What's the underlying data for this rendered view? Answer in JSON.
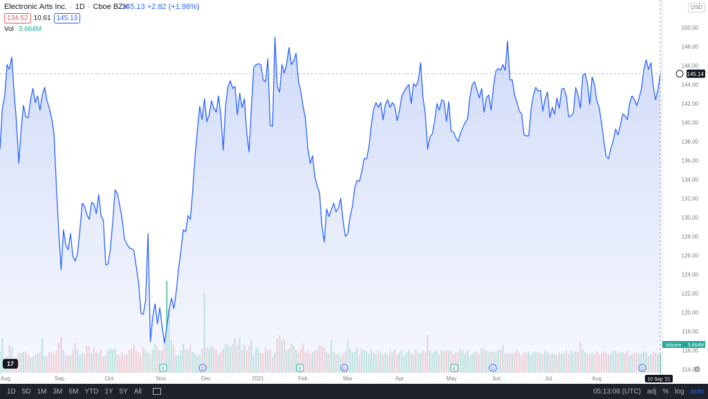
{
  "header": {
    "symbol": "Electronic Arts Inc.",
    "interval": "1D",
    "exchange": "Cboe BZX",
    "last_price": "145.13",
    "change": "+2.82 (+1.98%)",
    "bid": "134.52",
    "spread": "10.61",
    "ask": "145.13",
    "vol_label": "Vol",
    "vol_value": "3.664M",
    "currency": "USD"
  },
  "price_axis": {
    "ticks": [
      "150.00",
      "148.00",
      "146.00",
      "144.00",
      "142.00",
      "140.00",
      "138.00",
      "136.00",
      "134.00",
      "132.00",
      "130.00",
      "128.00",
      "126.00",
      "124.00",
      "122.00",
      "120.00",
      "118.00",
      "116.00",
      "114.00"
    ],
    "current_price_label": "145.14",
    "volume_label_name": "Volume",
    "volume_label_value": "3.664M"
  },
  "time_axis": {
    "labels": [
      "Aug",
      "Sep",
      "Oct",
      "Nov",
      "Dec",
      "2021",
      "Feb",
      "Mar",
      "Apr",
      "May",
      "Jun",
      "Jul",
      "Aug",
      "Se"
    ],
    "crosshair_date": "10 Sep '21"
  },
  "events": [
    {
      "type": "E",
      "label": "E"
    },
    {
      "type": "D",
      "label": "D"
    },
    {
      "type": "E",
      "label": "E"
    },
    {
      "type": "D",
      "label": "D"
    },
    {
      "type": "E",
      "label": "E"
    },
    {
      "type": "D",
      "label": "D"
    },
    {
      "type": "D",
      "label": "D"
    }
  ],
  "bottom_bar": {
    "timeframes": [
      "1D",
      "5D",
      "1M",
      "3M",
      "6M",
      "YTD",
      "1Y",
      "5Y",
      "All"
    ],
    "clock": "05:13:06 (UTC)",
    "adj": "adj",
    "percent": "%",
    "log": "log",
    "auto": "auto"
  },
  "colors": {
    "line": "#2962ff",
    "fill": "#dbe4fb",
    "vol_up": "#7dcfb6",
    "vol_down": "#f4a3a3",
    "red": "#ef5350",
    "green": "#26a69a"
  },
  "chart_data": {
    "type": "area",
    "series": [
      {
        "name": "Electronic Arts Inc.",
        "values": [
          137.2,
          141.5,
          142.8,
          146.1,
          145.6,
          146.9,
          143.2,
          140.1,
          135.7,
          139.3,
          141.8,
          140.6,
          140.5,
          142.4,
          143.6,
          142.1,
          142.8,
          141.3,
          142.9,
          143.7,
          142.3,
          141.5,
          140.4,
          138.8,
          133.2,
          128.4,
          124.5,
          128.7,
          127.1,
          126.6,
          128.3,
          125.9,
          125.4,
          126.2,
          128.7,
          131.5,
          131.2,
          130.3,
          129.8,
          131.6,
          131.4,
          130.4,
          132.4,
          130.2,
          129.7,
          125.0,
          125.1,
          126.7,
          129.6,
          132.9,
          132.5,
          131.2,
          129.8,
          127.7,
          127.2,
          126.8,
          126.7,
          126.5,
          124.8,
          123.1,
          119.9,
          119.8,
          121.3,
          128.3,
          116.9,
          119.5,
          120.9,
          118.8,
          120.5,
          118.5,
          116.8,
          118.5,
          120.3,
          121.5,
          120.4,
          122.2,
          124.6,
          126.5,
          128.7,
          128.5,
          130.2,
          129.8,
          132.8,
          136.4,
          139.2,
          141.7,
          140.3,
          142.5,
          140.1,
          140.8,
          142.3,
          141.5,
          141.1,
          142.8,
          140.7,
          137.1,
          141.8,
          143.8,
          144.4,
          143.6,
          143.8,
          140.8,
          143.1,
          141.6,
          142.5,
          138.9,
          136.9,
          141.6,
          145.8,
          146.1,
          146.2,
          146.1,
          144.5,
          144.3,
          146.7,
          139.7,
          139.6,
          149.0,
          143.8,
          143.2,
          146.1,
          145.2,
          146.2,
          147.9,
          146.1,
          146.5,
          147.3,
          144.4,
          143.3,
          141.7,
          140.4,
          137.3,
          135.7,
          136.5,
          134.3,
          133.3,
          132.6,
          129.1,
          127.4,
          130.9,
          130.1,
          130.8,
          131.5,
          130.6,
          131.0,
          132.0,
          129.6,
          128.0,
          128.3,
          130.1,
          131.2,
          133.2,
          133.9,
          133.8,
          134.9,
          136.2,
          136.2,
          137.4,
          139.7,
          141.4,
          142.1,
          141.6,
          142.1,
          140.3,
          141.9,
          142.4,
          141.6,
          142.1,
          141.7,
          140.2,
          141.3,
          142.8,
          143.3,
          143.7,
          144.0,
          142.0,
          144.1,
          143.8,
          144.4,
          146.3,
          142.7,
          140.9,
          137.2,
          138.5,
          138.8,
          140.2,
          142.0,
          141.3,
          142.4,
          142.2,
          140.1,
          142.2,
          139.1,
          139.0,
          138.4,
          138.0,
          138.9,
          139.5,
          140.0,
          140.4,
          142.7,
          144.0,
          144.3,
          143.4,
          142.6,
          143.6,
          141.1,
          142.6,
          142.9,
          141.3,
          143.8,
          145.4,
          145.7,
          145.5,
          146.1,
          145.5,
          148.6,
          144.5,
          144.5,
          142.9,
          142.1,
          141.2,
          140.9,
          138.7,
          138.6,
          138.6,
          141.4,
          142.9,
          143.7,
          143.3,
          143.4,
          141.2,
          142.5,
          143.2,
          140.5,
          141.6,
          140.9,
          142.6,
          141.5,
          143.5,
          143.6,
          142.8,
          140.6,
          140.7,
          141.0,
          143.7,
          142.9,
          141.5,
          144.9,
          145.2,
          144.1,
          141.9,
          144.8,
          144.0,
          142.3,
          141.6,
          140.0,
          138.0,
          136.4,
          136.2,
          137.3,
          138.1,
          139.3,
          138.7,
          139.7,
          140.9,
          140.7,
          140.3,
          142.1,
          142.8,
          142.4,
          141.8,
          142.6,
          143.6,
          145.6,
          146.6,
          145.6,
          146.3,
          143.8,
          142.4,
          143.5,
          145.1
        ]
      }
    ],
    "volume": [
      2.2,
      3.6,
      1.6,
      1.7,
      2.9,
      2.6,
      1.6,
      1.6,
      2.0,
      2.0,
      2.2,
      2.2,
      1.9,
      1.6,
      1.7,
      1.9,
      2.0,
      2.2,
      3.6,
      1.8,
      1.7,
      2.1,
      2.1,
      1.9,
      2.3,
      3.1,
      3.8,
      2.4,
      1.9,
      1.8,
      1.8,
      2.3,
      3.1,
      2.4,
      1.8,
      2.1,
      1.9,
      2.8,
      2.8,
      2.0,
      2.6,
      2.2,
      2.0,
      2.4,
      1.7,
      1.8,
      2.3,
      2.5,
      2.4,
      2.5,
      1.9,
      1.8,
      2.1,
      1.8,
      1.9,
      2.4,
      2.5,
      2.9,
      2.3,
      2.1,
      1.8,
      2.6,
      2.4,
      2.1,
      1.9,
      2.4,
      3.0,
      2.7,
      2.3,
      2.3,
      3.2,
      9.5,
      6.6,
      3.3,
      2.8,
      1.8,
      1.8,
      2.3,
      3.0,
      2.5,
      2.4,
      2.9,
      2.2,
      1.9,
      1.8,
      1.8,
      2.5,
      8.3,
      2.6,
      2.5,
      2.8,
      2.6,
      2.4,
      1.9,
      2.1,
      2.5,
      2.9,
      2.9,
      2.7,
      3.0,
      3.5,
      2.9,
      3.6,
      2.4,
      2.9,
      2.3,
      2.8,
      3.4,
      1.8,
      2.6,
      2.5,
      2.1,
      2.0,
      2.6,
      2.3,
      2.5,
      1.7,
      2.1,
      3.5,
      3.9,
      3.3,
      3.5,
      2.3,
      2.5,
      3.0,
      2.8,
      2.4,
      2.1,
      2.5,
      3.1,
      2.1,
      2.3,
      1.9,
      2.1,
      2.3,
      2.4,
      2.9,
      2.8,
      2.6,
      2.1,
      2.0,
      3.3,
      2.2,
      1.9,
      2.0,
      1.7,
      2.0,
      2.2,
      3.4,
      2.5,
      2.1,
      2.2,
      2.6,
      1.8,
      2.5,
      2.3,
      2.2,
      2.0,
      2.4,
      2.1,
      1.9,
      2.3,
      2.1,
      1.9,
      2.1,
      1.8,
      2.3,
      2.1,
      2.4,
      1.8,
      2.1,
      2.4,
      1.8,
      2.1,
      2.4,
      2.0,
      1.9,
      2.4,
      2.0,
      2.0,
      2.3,
      2.1,
      3.9,
      2.3,
      2.0,
      2.2,
      2.4,
      1.9,
      2.4,
      2.2,
      2.3,
      2.3,
      2.2,
      1.9,
      2.1,
      2.1,
      2.4,
      2.3,
      2.0,
      2.3,
      1.7,
      2.0,
      2.1,
      2.2,
      1.9,
      2.5,
      2.4,
      2.3,
      2.1,
      2.2,
      2.2,
      2.1,
      2.4,
      2.4,
      2.9,
      2.0,
      2.0,
      2.1,
      2.0,
      2.1,
      2.4,
      2.1,
      1.8,
      2.1,
      2.1,
      2.2,
      1.8,
      2.1,
      2.2,
      2.1,
      2.0,
      1.9,
      2.3,
      2.1,
      1.9,
      2.0,
      2.0,
      1.8,
      2.1,
      2.0,
      2.0,
      2.3,
      2.0,
      2.3,
      2.1,
      2.2,
      2.2,
      3.2,
      2.4,
      2.1,
      2.0,
      1.9,
      2.1,
      1.9,
      2.2,
      1.9,
      2.0,
      2.2,
      2.1,
      1.9,
      2.0,
      2.3,
      2.3,
      2.0,
      2.1,
      2.1,
      2.0,
      2.3,
      1.8,
      1.9,
      2.1,
      2.1,
      2.0,
      2.0,
      2.2,
      2.1,
      1.7,
      1.9,
      2.2,
      2.1,
      1.9,
      2.0,
      2.2,
      3.664
    ],
    "ylim": [
      113,
      151
    ],
    "grid": false
  }
}
